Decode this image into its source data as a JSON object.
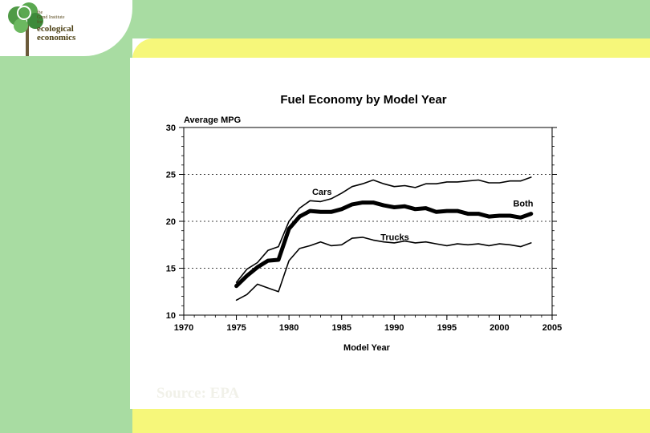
{
  "logo": {
    "line1": "the",
    "line2": "Gund Institute",
    "line3": "for",
    "line4": "ecological",
    "line5": "economics",
    "icon": "tree-icon"
  },
  "source_text": "Source: EPA",
  "colors": {
    "green": "#a8dca2",
    "yellow": "#f6f77a"
  },
  "chart_data": {
    "type": "line",
    "title": "Fuel Economy by Model Year",
    "ylabel": "Average MPG",
    "xlabel": "Model Year",
    "xlim": [
      1970,
      2005
    ],
    "ylim": [
      10,
      30
    ],
    "xticks": [
      1970,
      1975,
      1980,
      1985,
      1990,
      1995,
      2000,
      2005
    ],
    "yticks": [
      10,
      15,
      20,
      25,
      30
    ],
    "grid": "dotted horizontal at 15, 20, 25",
    "x": [
      1975,
      1976,
      1977,
      1978,
      1979,
      1980,
      1981,
      1982,
      1983,
      1984,
      1985,
      1986,
      1987,
      1988,
      1989,
      1990,
      1991,
      1992,
      1993,
      1994,
      1995,
      1996,
      1997,
      1998,
      1999,
      2000,
      2001,
      2002,
      2003
    ],
    "series": [
      {
        "name": "Cars",
        "values": [
          13.5,
          14.9,
          15.6,
          16.9,
          17.3,
          20.0,
          21.4,
          22.2,
          22.1,
          22.4,
          23.0,
          23.7,
          24.0,
          24.4,
          24.0,
          23.7,
          23.8,
          23.6,
          24.0,
          24.0,
          24.2,
          24.2,
          24.3,
          24.4,
          24.1,
          24.1,
          24.3,
          24.3,
          24.7
        ]
      },
      {
        "name": "Both",
        "values": [
          13.1,
          14.2,
          15.1,
          15.8,
          15.9,
          19.2,
          20.5,
          21.1,
          21.0,
          21.0,
          21.3,
          21.8,
          22.0,
          22.0,
          21.7,
          21.5,
          21.6,
          21.3,
          21.4,
          21.0,
          21.1,
          21.1,
          20.8,
          20.8,
          20.5,
          20.6,
          20.6,
          20.4,
          20.8
        ]
      },
      {
        "name": "Trucks",
        "values": [
          11.6,
          12.2,
          13.3,
          12.9,
          12.5,
          15.8,
          17.1,
          17.4,
          17.8,
          17.4,
          17.5,
          18.2,
          18.3,
          18.0,
          17.8,
          17.7,
          17.9,
          17.7,
          17.8,
          17.6,
          17.4,
          17.6,
          17.5,
          17.6,
          17.4,
          17.6,
          17.5,
          17.3,
          17.7
        ]
      }
    ],
    "series_labels": {
      "Cars": {
        "x": 1982.2,
        "y": 22.8
      },
      "Both": {
        "x": 2001.3,
        "y": 21.6
      },
      "Trucks": {
        "x": 1988.7,
        "y": 18.0
      }
    }
  }
}
